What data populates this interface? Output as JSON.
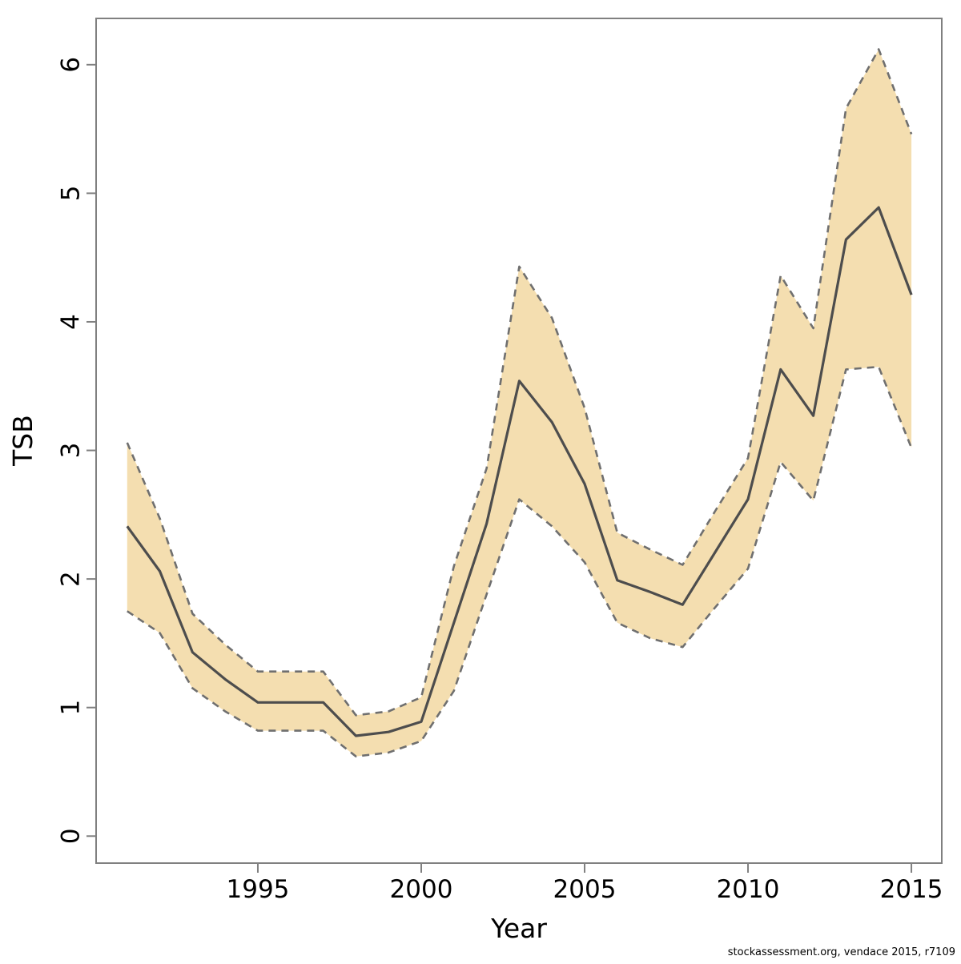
{
  "caption": "stockassessment.org, vendace 2015, r7109",
  "colors": {
    "band_fill": "#f4deb0",
    "ci_stroke": "#6f6f6f",
    "median_stroke": "#4d4d4d",
    "box_stroke": "#808080",
    "text": "#000000"
  },
  "chart_data": {
    "type": "line",
    "title": "",
    "xlabel": "Year",
    "ylabel": "TSB",
    "x": [
      1991,
      1992,
      1993,
      1994,
      1995,
      1996,
      1997,
      1998,
      1999,
      2000,
      2001,
      2002,
      2003,
      2004,
      2005,
      2006,
      2007,
      2008,
      2009,
      2010,
      2011,
      2012,
      2013,
      2014,
      2015
    ],
    "series": [
      {
        "name": "TSB estimate",
        "values": [
          2.41,
          2.06,
          1.43,
          1.22,
          1.04,
          1.04,
          1.04,
          0.78,
          0.81,
          0.89,
          1.66,
          2.43,
          3.54,
          3.22,
          2.74,
          1.99,
          1.9,
          1.8,
          2.21,
          2.62,
          3.63,
          3.27,
          4.64,
          4.89,
          4.21
        ]
      },
      {
        "name": "upper 95% CI",
        "values": [
          3.06,
          2.47,
          1.73,
          1.49,
          1.28,
          1.28,
          1.28,
          0.94,
          0.97,
          1.08,
          2.1,
          2.86,
          4.43,
          4.03,
          3.33,
          2.36,
          2.23,
          2.11,
          2.53,
          2.94,
          4.36,
          3.95,
          5.66,
          6.12,
          5.46
        ]
      },
      {
        "name": "lower 95% CI",
        "values": [
          1.75,
          1.58,
          1.15,
          0.97,
          0.82,
          0.82,
          0.82,
          0.62,
          0.65,
          0.74,
          1.13,
          1.88,
          2.62,
          2.41,
          2.13,
          1.66,
          1.54,
          1.47,
          1.78,
          2.08,
          2.91,
          2.61,
          3.63,
          3.65,
          3.02
        ]
      }
    ],
    "x_ticks": [
      1995,
      2000,
      2005,
      2010,
      2015
    ],
    "y_ticks": [
      0,
      1,
      2,
      3,
      4,
      5,
      6
    ],
    "xlim": [
      1990.05,
      2015.93
    ],
    "ylim": [
      -0.21,
      6.36
    ],
    "grid": false,
    "legend": "none",
    "band": {
      "upper_series": 1,
      "lower_series": 2,
      "style": "dashed-edges, no vertical edges at ends"
    }
  }
}
